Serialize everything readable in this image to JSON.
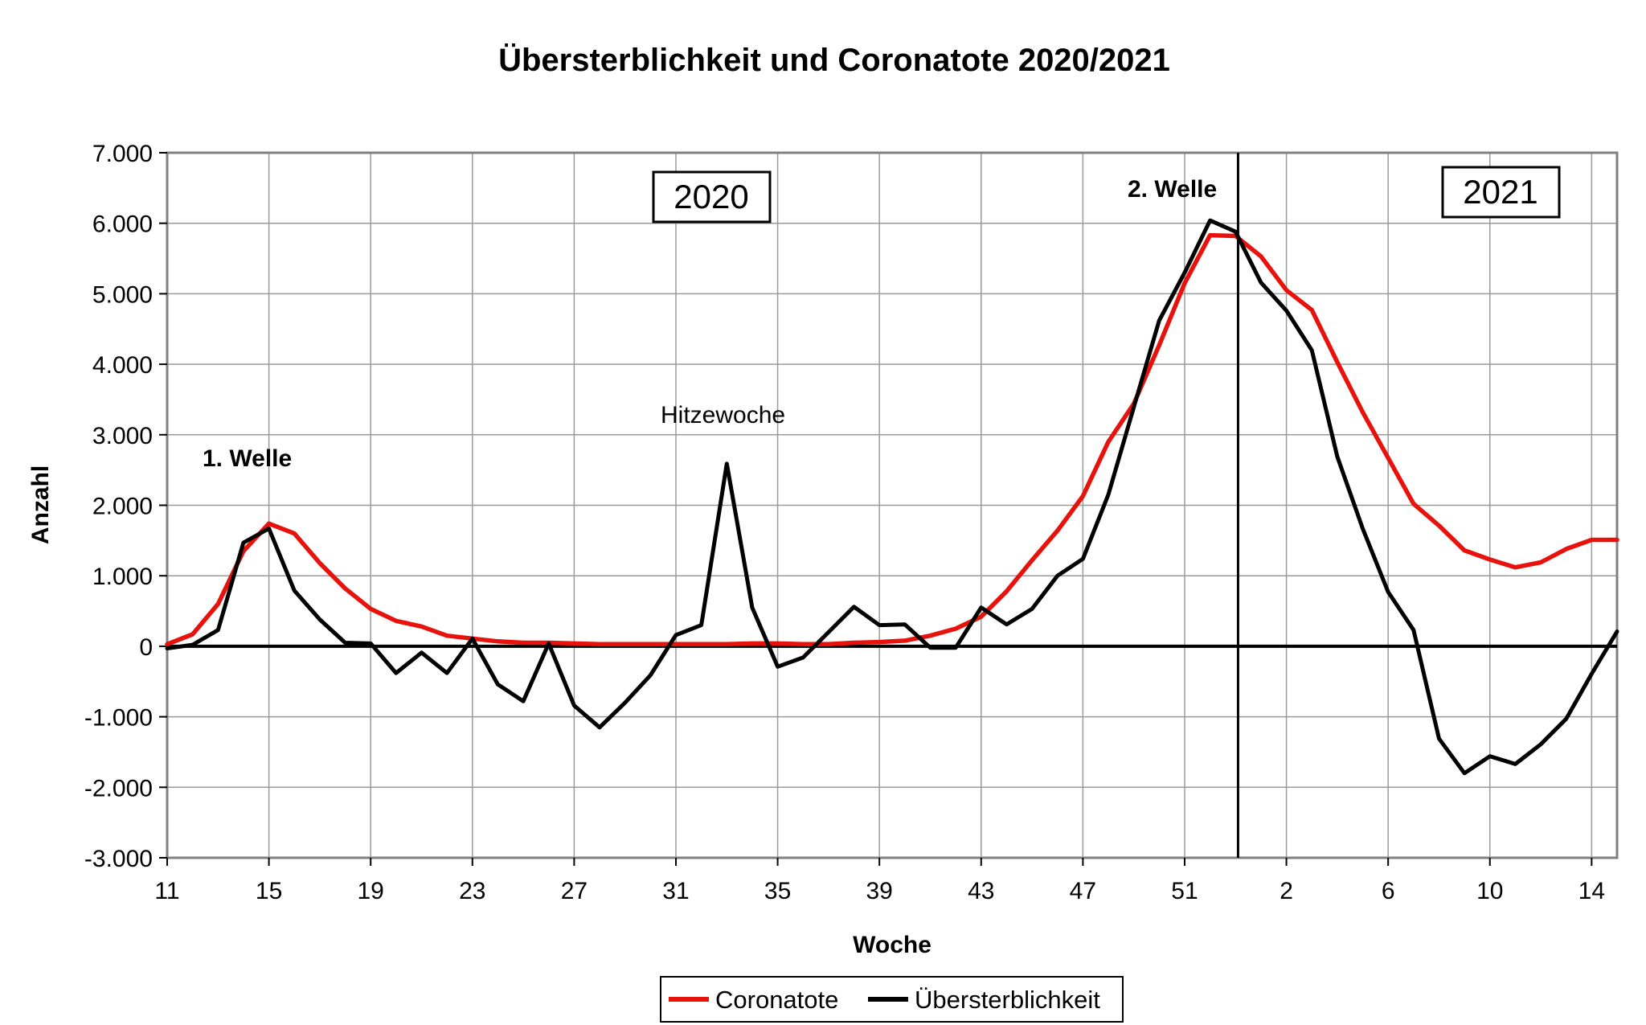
{
  "chart_data": {
    "type": "line",
    "title": "Übersterblichkeit und Coronatote 2020/2021",
    "xlabel": "Woche",
    "ylabel": "Anzahl",
    "ylim": [
      -3000,
      7000
    ],
    "ytick_values": [
      -3000,
      -2000,
      -1000,
      0,
      1000,
      2000,
      3000,
      4000,
      5000,
      6000,
      7000
    ],
    "ytick_labels": [
      "-3.000",
      "-2.000",
      "-1.000",
      "0",
      "1.000",
      "2.000",
      "3.000",
      "4.000",
      "5.000",
      "6.000",
      "7.000"
    ],
    "x_categories": [
      "11",
      "12",
      "13",
      "14",
      "15",
      "16",
      "17",
      "18",
      "19",
      "20",
      "21",
      "22",
      "23",
      "24",
      "25",
      "26",
      "27",
      "28",
      "29",
      "30",
      "31",
      "32",
      "33",
      "34",
      "35",
      "36",
      "37",
      "38",
      "39",
      "40",
      "41",
      "42",
      "43",
      "44",
      "45",
      "46",
      "47",
      "48",
      "49",
      "50",
      "51",
      "52",
      "53",
      "1",
      "2",
      "3",
      "4",
      "5",
      "6",
      "7",
      "8",
      "9",
      "10",
      "11",
      "12",
      "13",
      "14",
      "15"
    ],
    "xtick_labels": [
      "11",
      "15",
      "19",
      "23",
      "27",
      "31",
      "35",
      "39",
      "43",
      "47",
      "51",
      "2",
      "6",
      "10",
      "14"
    ],
    "grid": true,
    "zero_line": true,
    "legend_position": "bottom-center",
    "series": [
      {
        "name": "Coronatote",
        "color": "#e8120c",
        "values": [
          30,
          170,
          600,
          1350,
          1740,
          1600,
          1180,
          820,
          530,
          360,
          280,
          150,
          110,
          70,
          50,
          50,
          40,
          30,
          30,
          30,
          30,
          30,
          30,
          40,
          40,
          30,
          30,
          50,
          60,
          80,
          150,
          250,
          420,
          780,
          1220,
          1640,
          2130,
          2900,
          3440,
          4270,
          5150,
          5830,
          5820,
          5530,
          5050,
          4770,
          4030,
          3320,
          2670,
          2020,
          1710,
          1360,
          1230,
          1120,
          1190,
          1380,
          1510,
          1510
        ]
      },
      {
        "name": "Übersterblichkeit",
        "color": "#000000",
        "values": [
          -30,
          20,
          230,
          1470,
          1670,
          790,
          380,
          50,
          40,
          -380,
          -90,
          -380,
          110,
          -540,
          -780,
          40,
          -840,
          -1150,
          -800,
          -410,
          160,
          300,
          2590,
          550,
          -290,
          -160,
          200,
          560,
          300,
          310,
          -20,
          -20,
          550,
          310,
          530,
          1000,
          1240,
          2150,
          3390,
          4620,
          5300,
          6040,
          5880,
          5160,
          4760,
          4200,
          2690,
          1670,
          770,
          230,
          -1310,
          -1800,
          -1560,
          -1670,
          -1390,
          -1030,
          -390,
          210
        ]
      }
    ],
    "annotations": {
      "first_wave": "1. Welle",
      "heat_week": "Hitzewoche",
      "second_wave": "2. Welle"
    },
    "year_labels": {
      "y2020": "2020",
      "y2021": "2021"
    }
  }
}
